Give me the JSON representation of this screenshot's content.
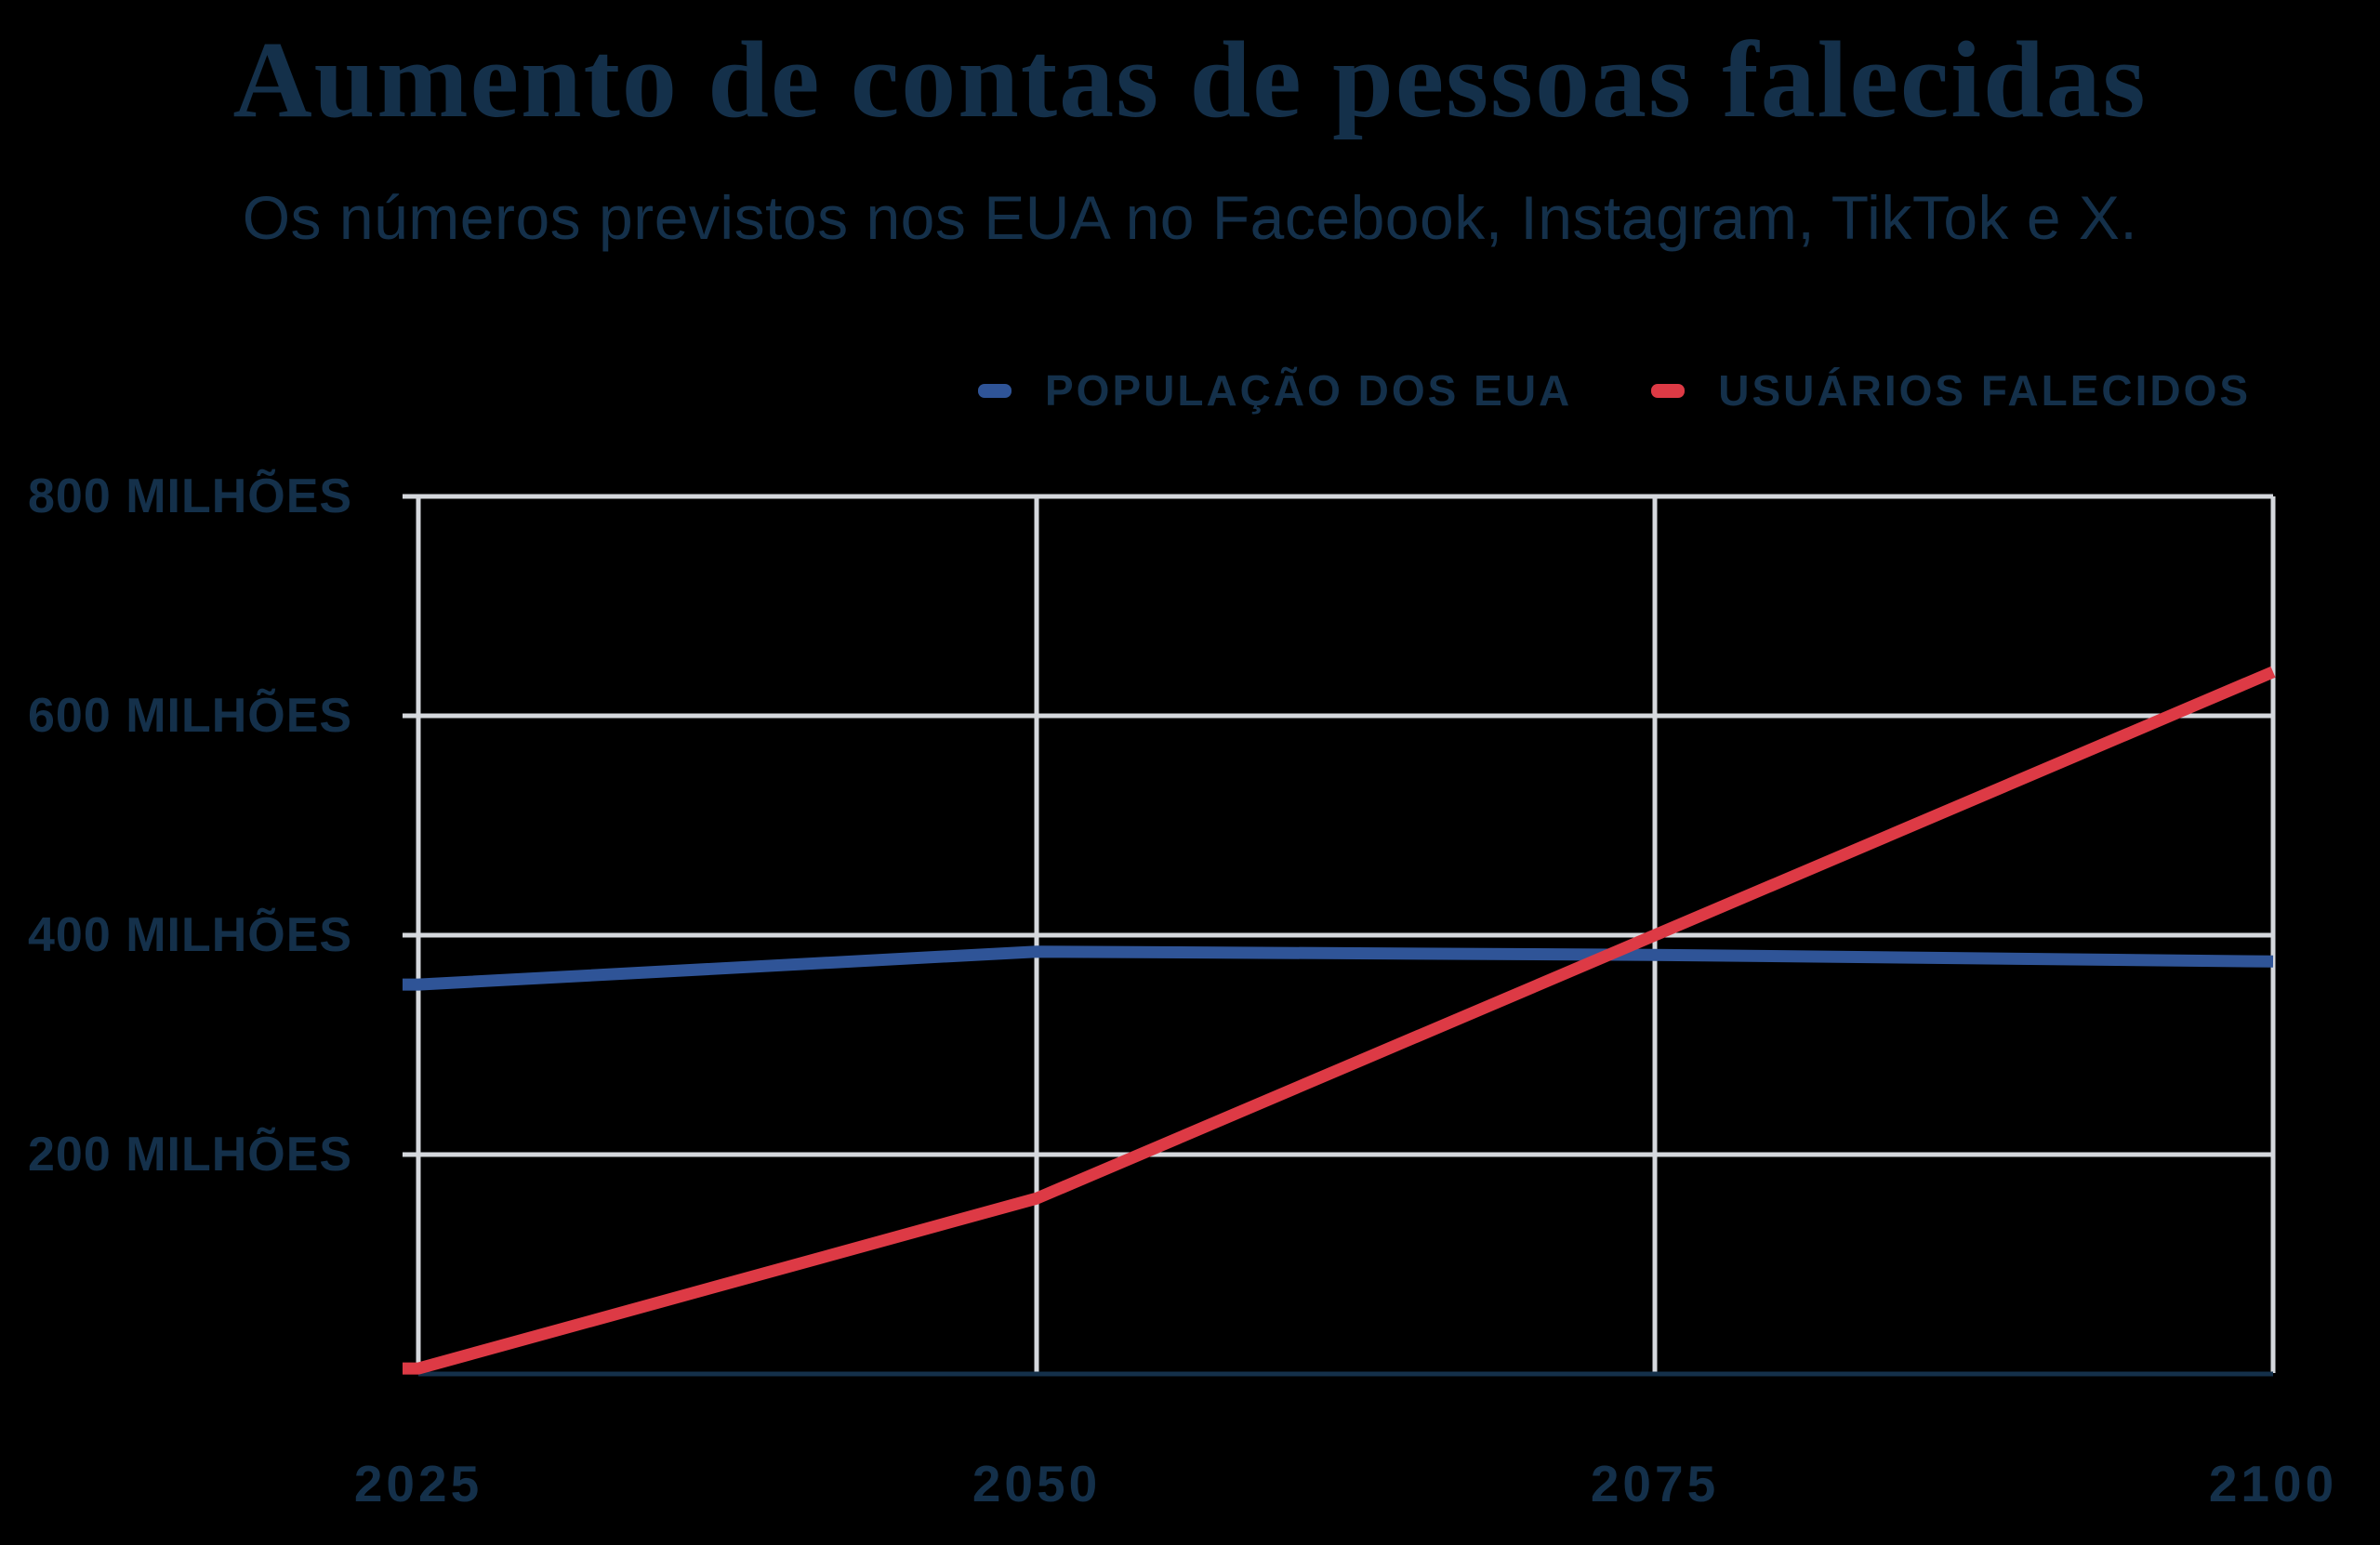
{
  "title": "Aumento de contas de pessoas falecidas",
  "subtitle": "Os números previstos nos EUA no Facebook, Instagram, TikTok e X.",
  "colors": {
    "background": "#000000",
    "text_navy": "#14304a",
    "grid_gray": "#d5d8dd",
    "baseline_navy": "#14304a",
    "population_blue": "#2f5497",
    "deceased_red": "#dd3a45"
  },
  "legend": [
    {
      "label": "POPULAÇÃO DOS EUA",
      "color_key": "population_blue"
    },
    {
      "label": "USUÁRIOS FALECIDOS",
      "color_key": "deceased_red"
    }
  ],
  "chart_data": {
    "type": "line",
    "x": [
      2025,
      2050,
      2075,
      2100
    ],
    "x_tick_labels": [
      "2025",
      "2050",
      "2075",
      "2100"
    ],
    "y_ticks": [
      {
        "value": 800,
        "label": "800 MILHÕES"
      },
      {
        "value": 600,
        "label": "600 MILHÕES"
      },
      {
        "value": 400,
        "label": "400 MILHÕES"
      },
      {
        "value": 200,
        "label": "200 MILHÕES"
      }
    ],
    "xlim": [
      2025,
      2100
    ],
    "ylim": [
      0,
      800
    ],
    "unit": "milhões",
    "grid": true,
    "legend_position": "top-right",
    "series": [
      {
        "name": "POPULAÇÃO DOS EUA",
        "color_key": "population_blue",
        "values": [
          355,
          385,
          382,
          376
        ]
      },
      {
        "name": "USUÁRIOS FALECIDOS",
        "color_key": "deceased_red",
        "values": [
          5,
          160,
          400,
          640
        ]
      }
    ]
  }
}
